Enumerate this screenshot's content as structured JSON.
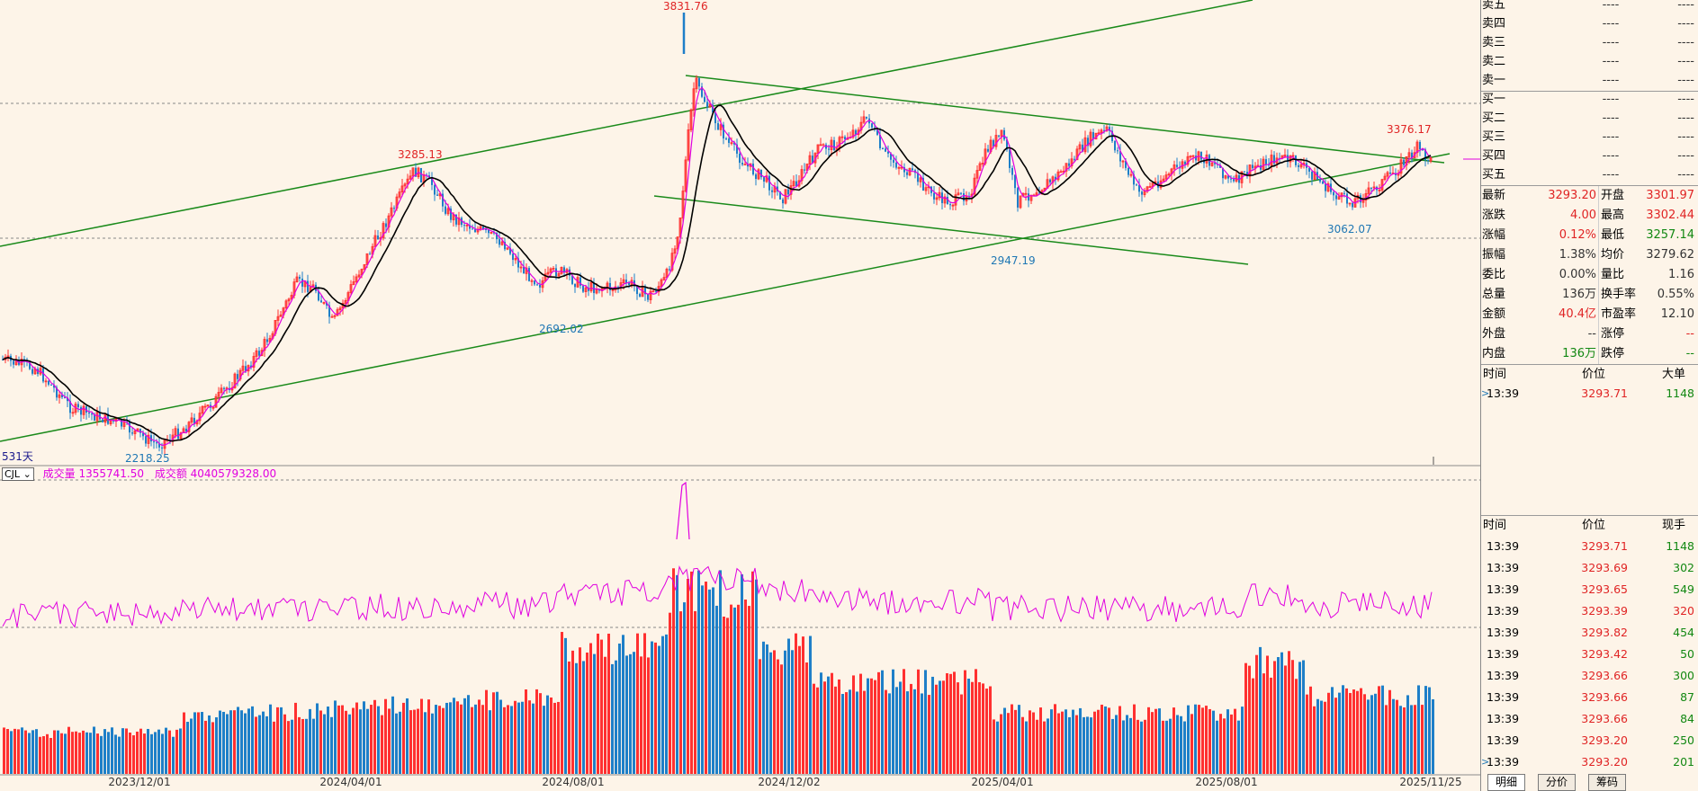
{
  "chart": {
    "peak_labels": [
      {
        "text": "3831.76",
        "color": "red"
      },
      {
        "text": "3285.13",
        "color": "red"
      },
      {
        "text": "3376.17",
        "color": "red"
      },
      {
        "text": "2947.19",
        "color": "blue"
      },
      {
        "text": "3062.07",
        "color": "blue"
      },
      {
        "text": "2692.02",
        "color": "blue"
      },
      {
        "text": "2218.25",
        "color": "blue"
      }
    ],
    "period_label": "531天",
    "indicator": {
      "selector": "CJL",
      "vol_label": "成交量",
      "vol_value": "1355741.50",
      "amt_label": "成交额",
      "amt_value": "4040579328.00"
    },
    "dates": [
      "2023/12/01",
      "2024/04/01",
      "2024/08/01",
      "2024/12/02",
      "2025/04/01",
      "2025/08/01",
      "2025/11/25"
    ],
    "colors": {
      "up": "#ff3030",
      "down": "#1e7fc8",
      "ma_black": "#000000",
      "ma_magenta": "#e000e0",
      "trendline": "#1a8a1a",
      "background": "#fdf4e8"
    }
  },
  "order_book": {
    "asks": [
      {
        "label": "卖五",
        "price": "----",
        "vol": "----"
      },
      {
        "label": "卖四",
        "price": "----",
        "vol": "----"
      },
      {
        "label": "卖三",
        "price": "----",
        "vol": "----"
      },
      {
        "label": "卖二",
        "price": "----",
        "vol": "----"
      },
      {
        "label": "卖一",
        "price": "----",
        "vol": "----"
      }
    ],
    "bids": [
      {
        "label": "买一",
        "price": "----",
        "vol": "----"
      },
      {
        "label": "买二",
        "price": "----",
        "vol": "----"
      },
      {
        "label": "买三",
        "price": "----",
        "vol": "----"
      },
      {
        "label": "买四",
        "price": "----",
        "vol": "----"
      },
      {
        "label": "买五",
        "price": "----",
        "vol": "----"
      }
    ]
  },
  "stats": [
    {
      "l1": "最新",
      "v1": "3293.20",
      "c1": "red",
      "l2": "开盘",
      "v2": "3301.97",
      "c2": "red"
    },
    {
      "l1": "涨跌",
      "v1": "4.00",
      "c1": "red",
      "l2": "最高",
      "v2": "3302.44",
      "c2": "red"
    },
    {
      "l1": "涨幅",
      "v1": "0.12%",
      "c1": "red",
      "l2": "最低",
      "v2": "3257.14",
      "c2": "green"
    },
    {
      "l1": "振幅",
      "v1": "1.38%",
      "c1": "dark",
      "l2": "均价",
      "v2": "3279.62",
      "c2": "dark"
    },
    {
      "l1": "委比",
      "v1": "0.00%",
      "c1": "dark",
      "l2": "量比",
      "v2": "1.16",
      "c2": "dark"
    },
    {
      "l1": "总量",
      "v1": "136万",
      "c1": "dark",
      "l2": "换手率",
      "v2": "0.55%",
      "c2": "dark"
    },
    {
      "l1": "金额",
      "v1": "40.4亿",
      "c1": "red",
      "l2": "市盈率",
      "v2": "12.10",
      "c2": "dark"
    },
    {
      "l1": "外盘",
      "v1": "--",
      "c1": "dark",
      "l2": "涨停",
      "v2": "--",
      "c2": "red"
    },
    {
      "l1": "内盘",
      "v1": "136万",
      "c1": "green",
      "l2": "跌停",
      "v2": "--",
      "c2": "green"
    }
  ],
  "big_orders": {
    "headers": [
      "时间",
      "价位",
      "大单"
    ],
    "rows": [
      {
        "time": "13:39",
        "price": "3293.71",
        "vol": "1148"
      }
    ]
  },
  "ticks": {
    "headers": [
      "时间",
      "价位",
      "现手"
    ],
    "rows": [
      {
        "time": "13:39",
        "price": "3293.71",
        "vol": "1148",
        "vc": "green"
      },
      {
        "time": "13:39",
        "price": "3293.69",
        "vol": "302",
        "vc": "green"
      },
      {
        "time": "13:39",
        "price": "3293.65",
        "vol": "549",
        "vc": "green"
      },
      {
        "time": "13:39",
        "price": "3293.39",
        "vol": "320",
        "vc": "red"
      },
      {
        "time": "13:39",
        "price": "3293.82",
        "vol": "454",
        "vc": "green"
      },
      {
        "time": "13:39",
        "price": "3293.42",
        "vol": "50",
        "vc": "green"
      },
      {
        "time": "13:39",
        "price": "3293.66",
        "vol": "300",
        "vc": "green"
      },
      {
        "time": "13:39",
        "price": "3293.66",
        "vol": "87",
        "vc": "green"
      },
      {
        "time": "13:39",
        "price": "3293.66",
        "vol": "84",
        "vc": "green"
      },
      {
        "time": "13:39",
        "price": "3293.20",
        "vol": "250",
        "vc": "green"
      },
      {
        "time": "13:39",
        "price": "3293.20",
        "vol": "201",
        "vc": "green"
      }
    ]
  },
  "tabs": [
    "明细",
    "分价",
    "筹码"
  ]
}
